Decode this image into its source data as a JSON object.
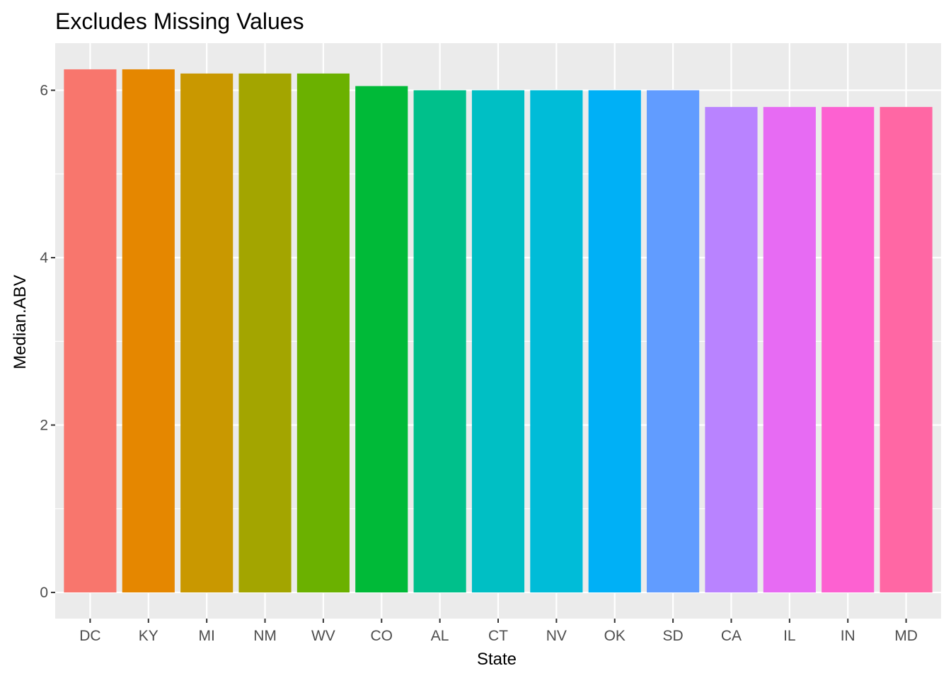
{
  "chart_data": {
    "type": "bar",
    "title": "Excludes Missing Values",
    "xlabel": "State",
    "ylabel": "Median.ABV",
    "categories": [
      "DC",
      "KY",
      "MI",
      "NM",
      "WV",
      "CO",
      "AL",
      "CT",
      "NV",
      "OK",
      "SD",
      "CA",
      "IL",
      "IN",
      "MD"
    ],
    "values": [
      6.25,
      6.25,
      6.2,
      6.2,
      6.2,
      6.05,
      6.0,
      6.0,
      6.0,
      6.0,
      6.0,
      5.8,
      5.8,
      5.8,
      5.8
    ],
    "colors": [
      "#F8766D",
      "#E58700",
      "#C99800",
      "#A3A500",
      "#6BB100",
      "#00BA38",
      "#00C08B",
      "#00BFC4",
      "#00BCD8",
      "#00B0F6",
      "#619CFF",
      "#B983FF",
      "#E76BF3",
      "#FD61D1",
      "#FF67A4"
    ],
    "ylim": [
      -0.3125,
      6.5625
    ],
    "yticks": [
      0,
      2,
      4,
      6
    ],
    "yticks_minor": [
      1,
      3,
      5
    ],
    "grid": true,
    "legend": "none",
    "panel_background": "#EBEBEB",
    "grid_color": "#FFFFFF"
  }
}
